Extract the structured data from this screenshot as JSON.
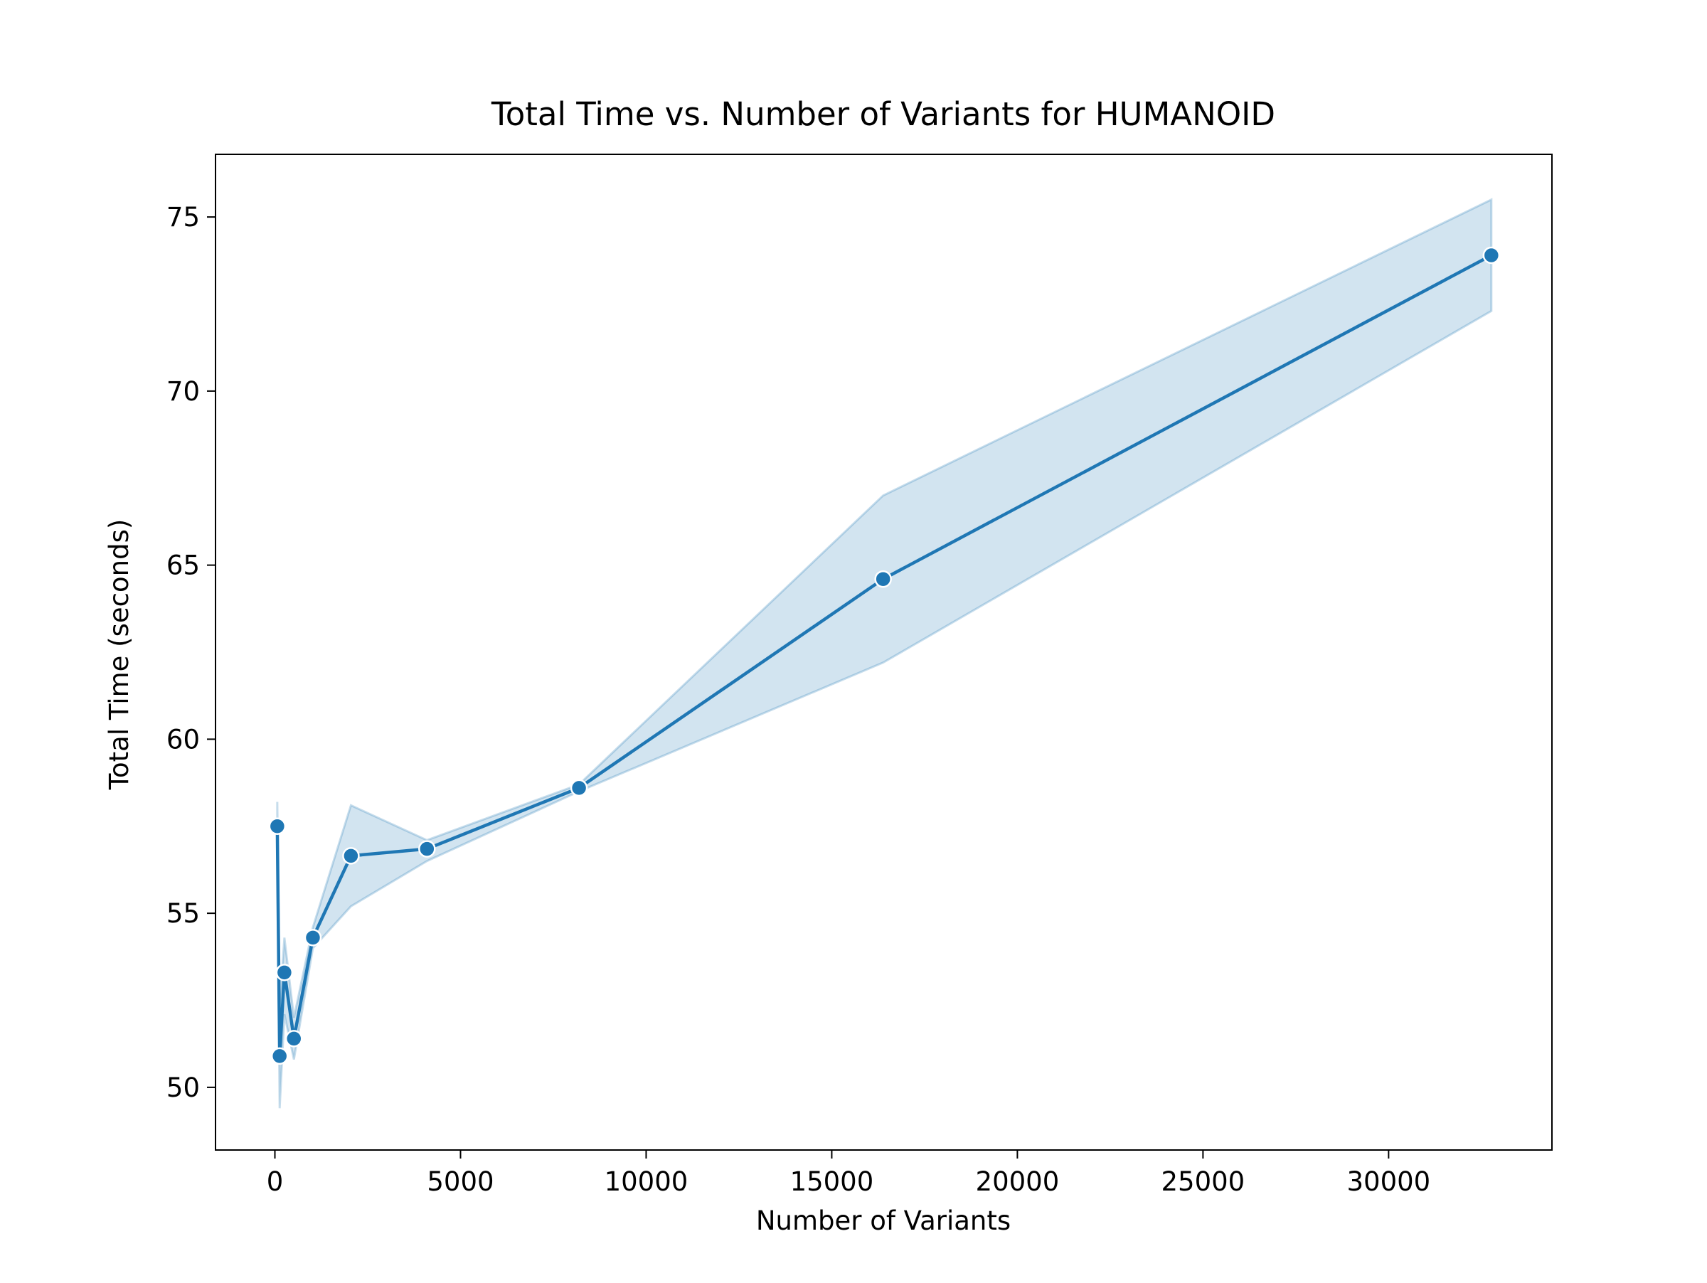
{
  "chart_data": {
    "type": "line",
    "title": "Total Time vs. Number of Variants for HUMANOID",
    "xlabel": "Number of Variants",
    "ylabel": "Total Time (seconds)",
    "xlim": [
      -1600,
      34400
    ],
    "ylim": [
      48.2,
      76.8
    ],
    "xticks": [
      0,
      5000,
      10000,
      15000,
      20000,
      25000,
      30000
    ],
    "xtick_labels": [
      "0",
      "5000",
      "10000",
      "15000",
      "20000",
      "25000",
      "30000"
    ],
    "yticks": [
      50,
      55,
      60,
      65,
      70,
      75
    ],
    "ytick_labels": [
      "50",
      "55",
      "60",
      "65",
      "70",
      "75"
    ],
    "grid": false,
    "legend": "none",
    "series": [
      {
        "name": "Total Time",
        "color": "#1f77b4",
        "band_color": "#1f77b4",
        "x": [
          64,
          128,
          256,
          512,
          1024,
          2048,
          4096,
          8192,
          16384,
          32768
        ],
        "y": [
          57.5,
          50.9,
          53.3,
          51.4,
          54.3,
          56.65,
          56.85,
          58.6,
          64.6,
          73.9
        ],
        "ci_low": [
          56.8,
          49.4,
          52.1,
          50.8,
          54.0,
          55.2,
          56.5,
          58.5,
          62.2,
          72.3
        ],
        "ci_high": [
          58.2,
          52.3,
          54.3,
          52.0,
          54.6,
          58.1,
          57.1,
          58.7,
          67.0,
          75.5
        ]
      }
    ]
  }
}
